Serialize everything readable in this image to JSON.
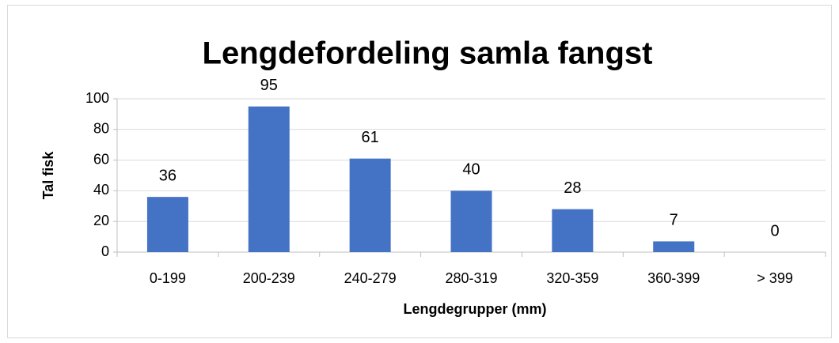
{
  "chart_data": {
    "type": "bar",
    "title": "Lengdefordeling samla fangst",
    "x_label": "Lengdegrupper (mm)",
    "y_label": "Tal fisk",
    "categories": [
      "0-199",
      "200-239",
      "240-279",
      "280-319",
      "320-359",
      "360-399",
      "> 399"
    ],
    "values": [
      36,
      95,
      61,
      40,
      28,
      7,
      0
    ],
    "color": "#4472c4",
    "ylim": [
      0,
      100
    ],
    "yticks": [
      0,
      20,
      40,
      60,
      80,
      100
    ],
    "grid": true
  }
}
